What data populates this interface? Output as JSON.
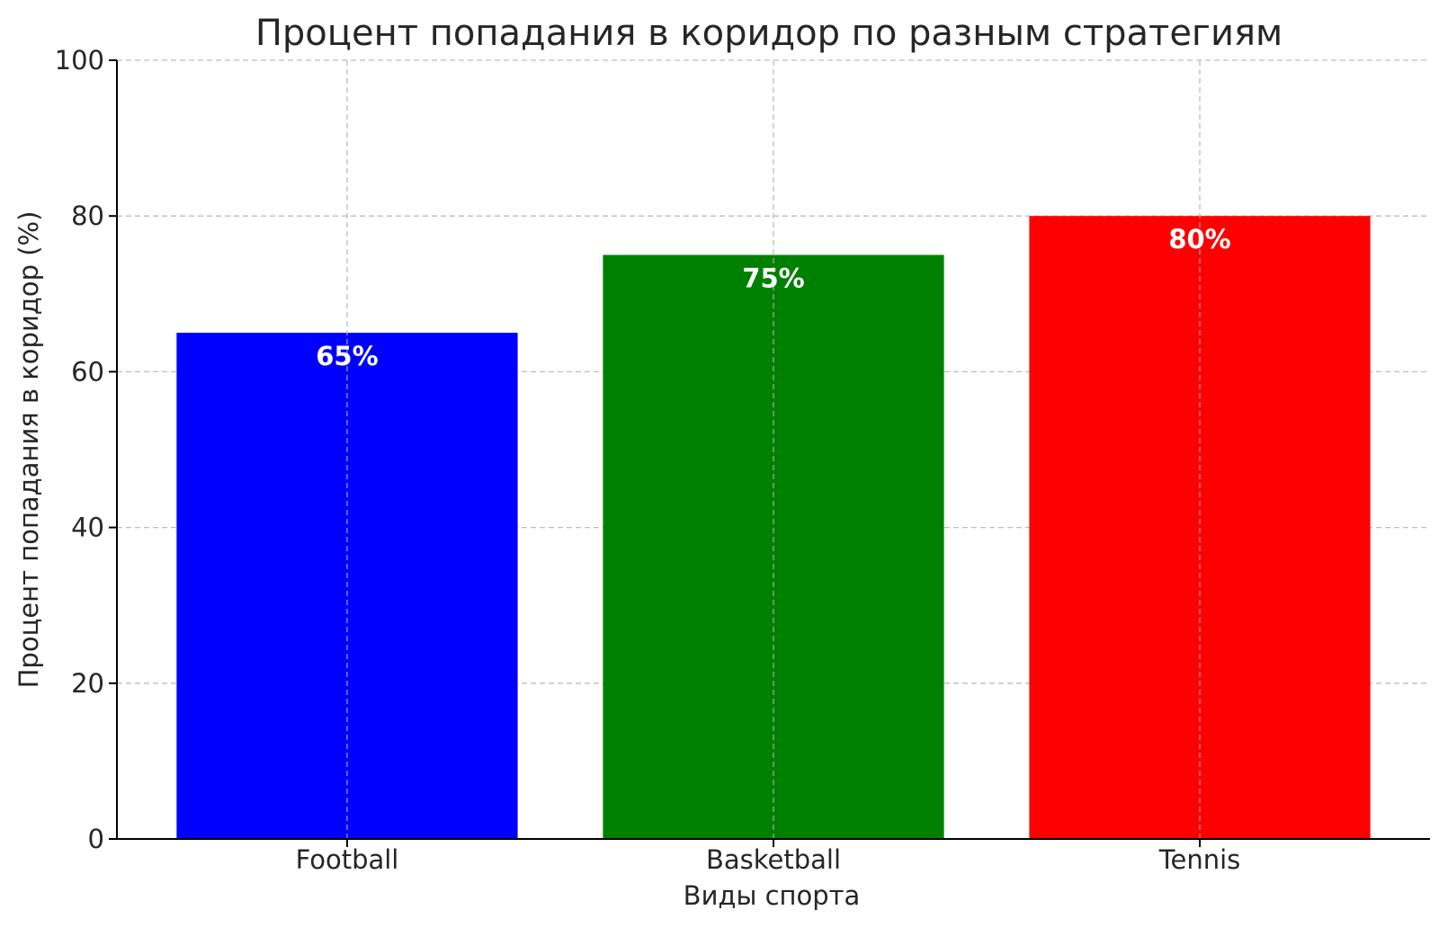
{
  "chart_data": {
    "type": "bar",
    "title": "Процент попадания в коридор по разным стратегиям",
    "xlabel": "Виды спорта",
    "ylabel": "Процент попадания в коридор (%)",
    "categories": [
      "Football",
      "Basketball",
      "Tennis"
    ],
    "values": [
      65,
      75,
      80
    ],
    "value_labels": [
      "65%",
      "75%",
      "80%"
    ],
    "colors": [
      "#0000ff",
      "#008000",
      "#ff0000"
    ],
    "ylim": [
      0,
      100
    ],
    "yticks": [
      0,
      20,
      40,
      60,
      80,
      100
    ],
    "ytick_labels": [
      "0",
      "20",
      "40",
      "60",
      "80",
      "100"
    ],
    "grid": true
  }
}
